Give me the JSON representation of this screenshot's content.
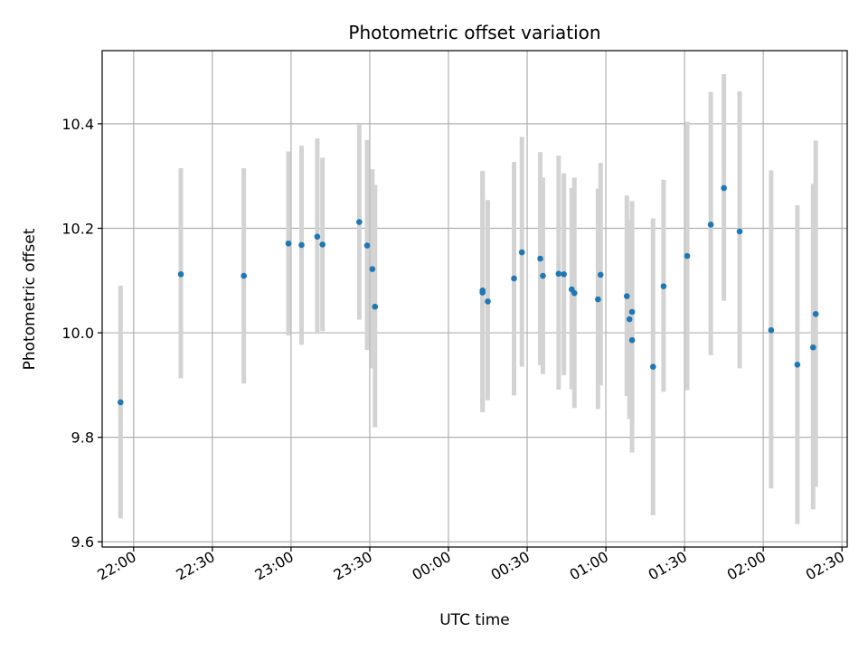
{
  "chart_data": {
    "type": "scatter",
    "title": "Photometric offset variation",
    "xlabel": "UTC time",
    "ylabel": "Photometric offset",
    "grid": true,
    "point_color": "#1f77b4",
    "errorbar_color": "#d3d3d3",
    "x_ticks": [
      "22:00",
      "22:30",
      "23:00",
      "23:30",
      "00:00",
      "00:30",
      "01:00",
      "01:30",
      "02:00",
      "02:30"
    ],
    "y_ticks": [
      "9.6",
      "9.8",
      "10.0",
      "10.2",
      "10.4"
    ],
    "xlim": [
      "21:48",
      "02:32"
    ],
    "ylim": [
      9.59,
      10.54
    ],
    "series": [
      {
        "points": [
          {
            "x": "21:55",
            "y": 9.867,
            "lo": 9.645,
            "hi": 10.09
          },
          {
            "x": "22:18",
            "y": 10.112,
            "lo": 9.913,
            "hi": 10.315
          },
          {
            "x": "22:42",
            "y": 10.109,
            "lo": 9.903,
            "hi": 10.315
          },
          {
            "x": "22:59",
            "y": 10.171,
            "lo": 9.995,
            "hi": 10.347
          },
          {
            "x": "23:04",
            "y": 10.168,
            "lo": 9.977,
            "hi": 10.358
          },
          {
            "x": "23:10",
            "y": 10.184,
            "lo": 9.998,
            "hi": 10.372
          },
          {
            "x": "23:12",
            "y": 10.169,
            "lo": 10.003,
            "hi": 10.335
          },
          {
            "x": "23:26",
            "y": 10.212,
            "lo": 10.025,
            "hi": 10.398
          },
          {
            "x": "23:29",
            "y": 10.167,
            "lo": 9.967,
            "hi": 10.369
          },
          {
            "x": "23:31",
            "y": 10.122,
            "lo": 9.932,
            "hi": 10.313
          },
          {
            "x": "23:32",
            "y": 10.05,
            "lo": 9.819,
            "hi": 10.283
          },
          {
            "x": "00:13",
            "y": 10.077,
            "lo": 9.848,
            "hi": 10.31
          },
          {
            "x": "00:13",
            "y": 10.081,
            "lo": 9.857,
            "hi": 10.309
          },
          {
            "x": "00:15",
            "y": 10.06,
            "lo": 9.871,
            "hi": 10.254
          },
          {
            "x": "00:25",
            "y": 10.104,
            "lo": 9.88,
            "hi": 10.327
          },
          {
            "x": "00:28",
            "y": 10.154,
            "lo": 9.935,
            "hi": 10.375
          },
          {
            "x": "00:35",
            "y": 10.142,
            "lo": 9.938,
            "hi": 10.346
          },
          {
            "x": "00:36",
            "y": 10.109,
            "lo": 9.921,
            "hi": 10.297
          },
          {
            "x": "00:42",
            "y": 10.113,
            "lo": 9.891,
            "hi": 10.339
          },
          {
            "x": "00:44",
            "y": 10.112,
            "lo": 9.919,
            "hi": 10.305
          },
          {
            "x": "00:47",
            "y": 10.083,
            "lo": 9.892,
            "hi": 10.277
          },
          {
            "x": "00:48",
            "y": 10.076,
            "lo": 9.856,
            "hi": 10.297
          },
          {
            "x": "00:57",
            "y": 10.064,
            "lo": 9.854,
            "hi": 10.276
          },
          {
            "x": "00:58",
            "y": 10.111,
            "lo": 9.899,
            "hi": 10.325
          },
          {
            "x": "01:08",
            "y": 10.07,
            "lo": 9.879,
            "hi": 10.263
          },
          {
            "x": "01:09",
            "y": 10.026,
            "lo": 9.835,
            "hi": 10.216
          },
          {
            "x": "01:10",
            "y": 10.04,
            "lo": 9.828,
            "hi": 10.252
          },
          {
            "x": "01:10",
            "y": 9.986,
            "lo": 9.771,
            "hi": 10.202
          },
          {
            "x": "01:18",
            "y": 9.935,
            "lo": 9.651,
            "hi": 10.219
          },
          {
            "x": "01:22",
            "y": 10.089,
            "lo": 9.887,
            "hi": 10.293
          },
          {
            "x": "01:31",
            "y": 10.147,
            "lo": 9.89,
            "hi": 10.404
          },
          {
            "x": "01:40",
            "y": 10.207,
            "lo": 9.957,
            "hi": 10.461
          },
          {
            "x": "01:45",
            "y": 10.277,
            "lo": 10.061,
            "hi": 10.495
          },
          {
            "x": "01:51",
            "y": 10.194,
            "lo": 9.932,
            "hi": 10.462
          },
          {
            "x": "02:03",
            "y": 10.005,
            "lo": 9.702,
            "hi": 10.311
          },
          {
            "x": "02:13",
            "y": 9.939,
            "lo": 9.634,
            "hi": 10.244
          },
          {
            "x": "02:19",
            "y": 9.972,
            "lo": 9.662,
            "hi": 10.285
          },
          {
            "x": "02:20",
            "y": 10.036,
            "lo": 9.705,
            "hi": 10.368
          }
        ]
      }
    ]
  }
}
